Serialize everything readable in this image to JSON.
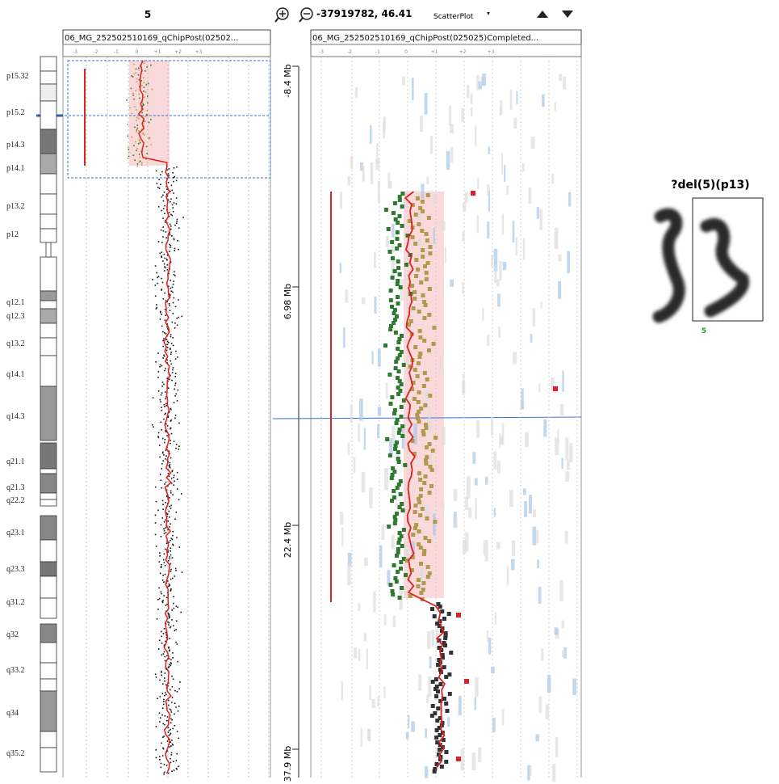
{
  "header": {
    "chromosome": "5",
    "coordinates": "-37919782, 46.41",
    "view": "ScatterPlot"
  },
  "panels": [
    {
      "title": "06_MG_252502510169_qChipPost(02502..."
    },
    {
      "title": "06_MG_252502510169_qChipPost(025025)Completed..."
    }
  ],
  "axis_ticks": [
    "-3",
    "-2",
    "-1",
    "0",
    "+1",
    "+2",
    "+3"
  ],
  "ideogram": {
    "bands": [
      "p15.32",
      "p15.2",
      "p14.3",
      "p14.1",
      "p13.2",
      "p12",
      "q12.1",
      "q12.3",
      "q13.2",
      "q14.1",
      "q14.3",
      "q21.1",
      "q21.3",
      "q22.2",
      "q23.1",
      "q23.3",
      "q31.2",
      "q32",
      "q33.2",
      "q34",
      "q35.2"
    ]
  },
  "position_axis": {
    "labels": [
      "-8.4 Mb",
      "6.98 Mb",
      "22.4 Mb",
      "37.9 Mb"
    ]
  },
  "karyotype": {
    "label": "?del(5)(p13)",
    "chromosome": "5"
  }
}
